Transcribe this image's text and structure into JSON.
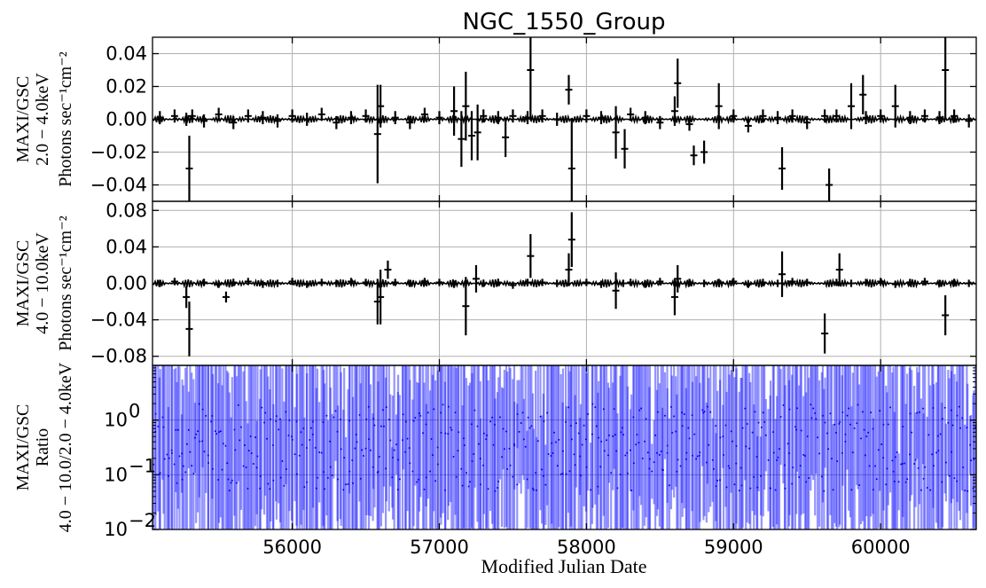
{
  "chart_data": {
    "title": "NGC_1550_Group",
    "xlabel": "Modified Julian Date",
    "xlim": [
      55050,
      60650
    ],
    "xticks": [
      56000,
      57000,
      58000,
      59000,
      60000
    ],
    "xtick_labels": [
      "56000",
      "57000",
      "58000",
      "59000",
      "60000"
    ],
    "grid": true,
    "panels": [
      {
        "id": "soft",
        "type": "scatter",
        "ylabel_lines": [
          "MAXI/GSC",
          "2.0 − 4.0keV",
          "Photons sec⁻¹cm⁻²"
        ],
        "ylim": [
          -0.05,
          0.05
        ],
        "yticks": [
          -0.04,
          -0.02,
          0.0,
          0.02,
          0.04
        ],
        "ytick_labels": [
          "−0.04",
          "−0.02",
          "0.00",
          "0.02",
          "0.04"
        ],
        "scale": "linear",
        "color": "#000000",
        "series": [
          {
            "x": [
              55100,
              55200,
              55280,
              55300,
              55320,
              55400,
              55500,
              55600,
              55700,
              55800,
              55900,
              56000,
              56100,
              56200,
              56300,
              56400,
              56500,
              56580,
              56600,
              56700,
              56800,
              56900,
              57000,
              57100,
              57150,
              57180,
              57220,
              57260,
              57300,
              57400,
              57450,
              57500,
              57600,
              57620,
              57700,
              57800,
              57880,
              57900,
              58000,
              58100,
              58200,
              58260,
              58300,
              58400,
              58500,
              58600,
              58620,
              58700,
              58730,
              58800,
              58900,
              59000,
              59100,
              59200,
              59300,
              59330,
              59400,
              59500,
              59620,
              59650,
              59700,
              59800,
              59880,
              59900,
              60000,
              60100,
              60200,
              60300,
              60400,
              60440,
              60500,
              60600
            ],
            "y": [
              0.001,
              0.002,
              0.0,
              -0.03,
              0.002,
              -0.001,
              0.003,
              -0.002,
              0.002,
              0.001,
              -0.001,
              0.002,
              0.0,
              0.003,
              -0.002,
              0.001,
              0.002,
              -0.009,
              0.008,
              0.001,
              -0.002,
              0.003,
              0.001,
              0.005,
              -0.012,
              0.008,
              -0.01,
              -0.008,
              0.002,
              0.001,
              -0.011,
              0.002,
              0.001,
              0.03,
              0.002,
              0.0,
              0.018,
              -0.03,
              0.002,
              0.001,
              -0.008,
              -0.018,
              0.003,
              0.001,
              -0.002,
              0.005,
              0.022,
              -0.003,
              -0.022,
              -0.02,
              0.008,
              0.002,
              -0.004,
              0.002,
              0.001,
              -0.03,
              0.002,
              -0.002,
              0.002,
              -0.04,
              0.002,
              0.008,
              0.015,
              0.001,
              0.002,
              0.008,
              0.001,
              0.002,
              0.001,
              0.03,
              0.002,
              -0.001
            ],
            "yerr": [
              0.004,
              0.004,
              0.004,
              0.02,
              0.004,
              0.004,
              0.004,
              0.004,
              0.004,
              0.004,
              0.004,
              0.004,
              0.004,
              0.004,
              0.004,
              0.004,
              0.004,
              0.03,
              0.013,
              0.004,
              0.004,
              0.004,
              0.004,
              0.015,
              0.017,
              0.021,
              0.015,
              0.017,
              0.004,
              0.004,
              0.012,
              0.004,
              0.004,
              0.03,
              0.004,
              0.004,
              0.009,
              0.03,
              0.004,
              0.004,
              0.016,
              0.012,
              0.004,
              0.004,
              0.004,
              0.009,
              0.015,
              0.004,
              0.006,
              0.007,
              0.014,
              0.004,
              0.004,
              0.004,
              0.004,
              0.013,
              0.004,
              0.004,
              0.004,
              0.01,
              0.004,
              0.014,
              0.012,
              0.004,
              0.004,
              0.013,
              0.004,
              0.004,
              0.004,
              0.03,
              0.004,
              0.004
            ]
          }
        ]
      },
      {
        "id": "hard",
        "type": "scatter",
        "ylabel_lines": [
          "MAXI/GSC",
          "4.0 − 10.0keV",
          "Photons sec⁻¹cm⁻²"
        ],
        "ylim": [
          -0.09,
          0.09
        ],
        "yticks": [
          -0.08,
          -0.04,
          0.0,
          0.04,
          0.08
        ],
        "ytick_labels": [
          "−0.08",
          "−0.04",
          "0.00",
          "0.04",
          "0.08"
        ],
        "scale": "linear",
        "color": "#000000",
        "series": [
          {
            "x": [
              55100,
              55200,
              55280,
              55300,
              55400,
              55500,
              55550,
              55600,
              55700,
              55800,
              55900,
              56000,
              56100,
              56200,
              56300,
              56400,
              56500,
              56580,
              56600,
              56650,
              56700,
              56800,
              56900,
              57000,
              57100,
              57180,
              57250,
              57300,
              57400,
              57500,
              57600,
              57620,
              57700,
              57800,
              57880,
              57900,
              58000,
              58100,
              58200,
              58250,
              58300,
              58400,
              58500,
              58600,
              58620,
              58700,
              58800,
              58900,
              59000,
              59100,
              59200,
              59300,
              59330,
              59400,
              59500,
              59620,
              59700,
              59720,
              59800,
              59900,
              60000,
              60100,
              60200,
              60300,
              60400,
              60440,
              60500,
              60600
            ],
            "y": [
              0.0,
              0.002,
              -0.015,
              -0.05,
              0.001,
              -0.001,
              -0.015,
              0.001,
              0.002,
              -0.001,
              0.0,
              0.002,
              -0.001,
              0.001,
              0.0,
              0.002,
              0.001,
              -0.02,
              -0.015,
              0.015,
              0.001,
              0.0,
              0.002,
              0.001,
              -0.001,
              -0.025,
              0.005,
              0.0,
              0.001,
              -0.002,
              0.001,
              0.03,
              0.001,
              0.0,
              0.015,
              0.048,
              0.001,
              -0.001,
              -0.008,
              0.0,
              0.001,
              -0.001,
              0.002,
              -0.015,
              0.005,
              0.001,
              0.0,
              0.001,
              0.002,
              -0.001,
              0.001,
              0.0,
              0.01,
              0.002,
              0.001,
              -0.055,
              0.001,
              0.015,
              0.0,
              0.001,
              0.002,
              -0.001,
              0.001,
              0.002,
              0.0,
              -0.035,
              0.001,
              0.0
            ],
            "yerr": [
              0.004,
              0.004,
              0.012,
              0.03,
              0.004,
              0.004,
              0.006,
              0.004,
              0.004,
              0.004,
              0.004,
              0.004,
              0.004,
              0.004,
              0.004,
              0.004,
              0.004,
              0.025,
              0.03,
              0.01,
              0.004,
              0.004,
              0.004,
              0.004,
              0.004,
              0.032,
              0.015,
              0.004,
              0.004,
              0.004,
              0.004,
              0.024,
              0.004,
              0.004,
              0.018,
              0.03,
              0.004,
              0.004,
              0.02,
              0.004,
              0.004,
              0.004,
              0.004,
              0.02,
              0.015,
              0.004,
              0.004,
              0.004,
              0.004,
              0.004,
              0.004,
              0.004,
              0.025,
              0.004,
              0.004,
              0.022,
              0.004,
              0.018,
              0.004,
              0.004,
              0.004,
              0.004,
              0.004,
              0.004,
              0.004,
              0.022,
              0.004,
              0.004
            ]
          }
        ]
      },
      {
        "id": "ratio",
        "type": "scatter",
        "ylabel_lines": [
          "MAXI/GSC",
          "Ratio",
          "4.0 − 10.0/2.0 − 4.0keV"
        ],
        "ylim": [
          0.01,
          10
        ],
        "yticks": [
          0.01,
          0.1,
          1
        ],
        "ytick_labels": [
          "10",
          "10",
          "10"
        ],
        "ytick_exponents": [
          "−2",
          "−1",
          "0"
        ],
        "scale": "log",
        "color": "#0000ff",
        "series": [
          {
            "x_range": [
              55050,
              60650
            ],
            "n_points": 560,
            "y_center_range": [
              0.05,
              2.0
            ],
            "yerr_factor_range": [
              3,
              100
            ]
          }
        ]
      }
    ]
  }
}
